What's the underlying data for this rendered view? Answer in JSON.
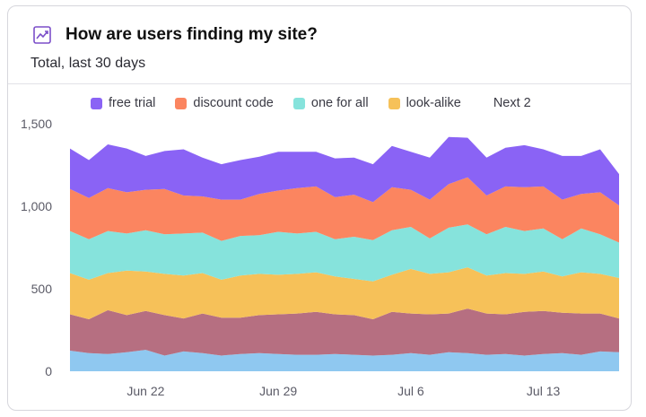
{
  "header": {
    "title": "How are users finding my site?",
    "subtitle": "Total, last 30 days",
    "icon": "chart-line-icon"
  },
  "legend": {
    "items": [
      {
        "label": "free trial",
        "color": "#8a63f5"
      },
      {
        "label": "discount code",
        "color": "#fb8560"
      },
      {
        "label": "one for all",
        "color": "#86e3dc"
      },
      {
        "label": "look-alike",
        "color": "#f6c159"
      }
    ],
    "more_label": "Next 2"
  },
  "chart_data": {
    "type": "area",
    "stacked": true,
    "x": [
      "Jun 18",
      "Jun 19",
      "Jun 20",
      "Jun 21",
      "Jun 22",
      "Jun 23",
      "Jun 24",
      "Jun 25",
      "Jun 26",
      "Jun 27",
      "Jun 28",
      "Jun 29",
      "Jun 30",
      "Jul 1",
      "Jul 2",
      "Jul 3",
      "Jul 4",
      "Jul 5",
      "Jul 6",
      "Jul 7",
      "Jul 8",
      "Jul 9",
      "Jul 10",
      "Jul 11",
      "Jul 12",
      "Jul 13",
      "Jul 14",
      "Jul 15",
      "Jul 16",
      "Jul 17"
    ],
    "x_tick_labels": [
      "Jun 22",
      "Jun 29",
      "Jul 6",
      "Jul 13"
    ],
    "y_ticks": [
      0,
      500,
      1000,
      1500
    ],
    "y_tick_labels": [
      "0",
      "500",
      "1,000",
      "1,500"
    ],
    "ylim": [
      0,
      1500
    ],
    "grid": false,
    "legend_position": "top",
    "series": [
      {
        "name": "",
        "color": "#8fc8f0",
        "values": [
          125,
          110,
          105,
          115,
          130,
          95,
          120,
          110,
          95,
          105,
          110,
          105,
          100,
          100,
          105,
          100,
          95,
          100,
          110,
          100,
          115,
          110,
          100,
          105,
          95,
          105,
          110,
          100,
          120,
          115
        ]
      },
      {
        "name": "",
        "color": "#b66f81",
        "values": [
          220,
          205,
          265,
          225,
          235,
          245,
          200,
          240,
          230,
          220,
          230,
          240,
          250,
          260,
          240,
          240,
          220,
          260,
          240,
          245,
          235,
          270,
          250,
          240,
          265,
          260,
          245,
          250,
          230,
          205
        ]
      },
      {
        "name": "look-alike",
        "color": "#f6c159",
        "values": [
          250,
          240,
          225,
          270,
          240,
          250,
          260,
          245,
          230,
          255,
          250,
          240,
          240,
          240,
          230,
          220,
          230,
          225,
          270,
          245,
          250,
          250,
          230,
          250,
          230,
          240,
          220,
          250,
          240,
          245
        ]
      },
      {
        "name": "one for all",
        "color": "#86e3dc",
        "values": [
          255,
          245,
          255,
          225,
          250,
          240,
          255,
          245,
          235,
          240,
          235,
          260,
          245,
          245,
          225,
          255,
          250,
          270,
          255,
          215,
          270,
          260,
          250,
          280,
          260,
          260,
          225,
          265,
          240,
          215
        ]
      },
      {
        "name": "discount code",
        "color": "#fb8560",
        "values": [
          255,
          250,
          260,
          250,
          245,
          275,
          230,
          220,
          250,
          220,
          250,
          250,
          275,
          275,
          255,
          255,
          230,
          260,
          225,
          235,
          265,
          285,
          235,
          245,
          265,
          255,
          240,
          210,
          255,
          225
        ]
      },
      {
        "name": "free trial",
        "color": "#8a63f5",
        "values": [
          245,
          230,
          265,
          265,
          205,
          230,
          280,
          235,
          215,
          240,
          225,
          235,
          220,
          210,
          235,
          225,
          230,
          250,
          230,
          255,
          285,
          240,
          230,
          235,
          255,
          225,
          265,
          230,
          260,
          190
        ]
      }
    ]
  }
}
